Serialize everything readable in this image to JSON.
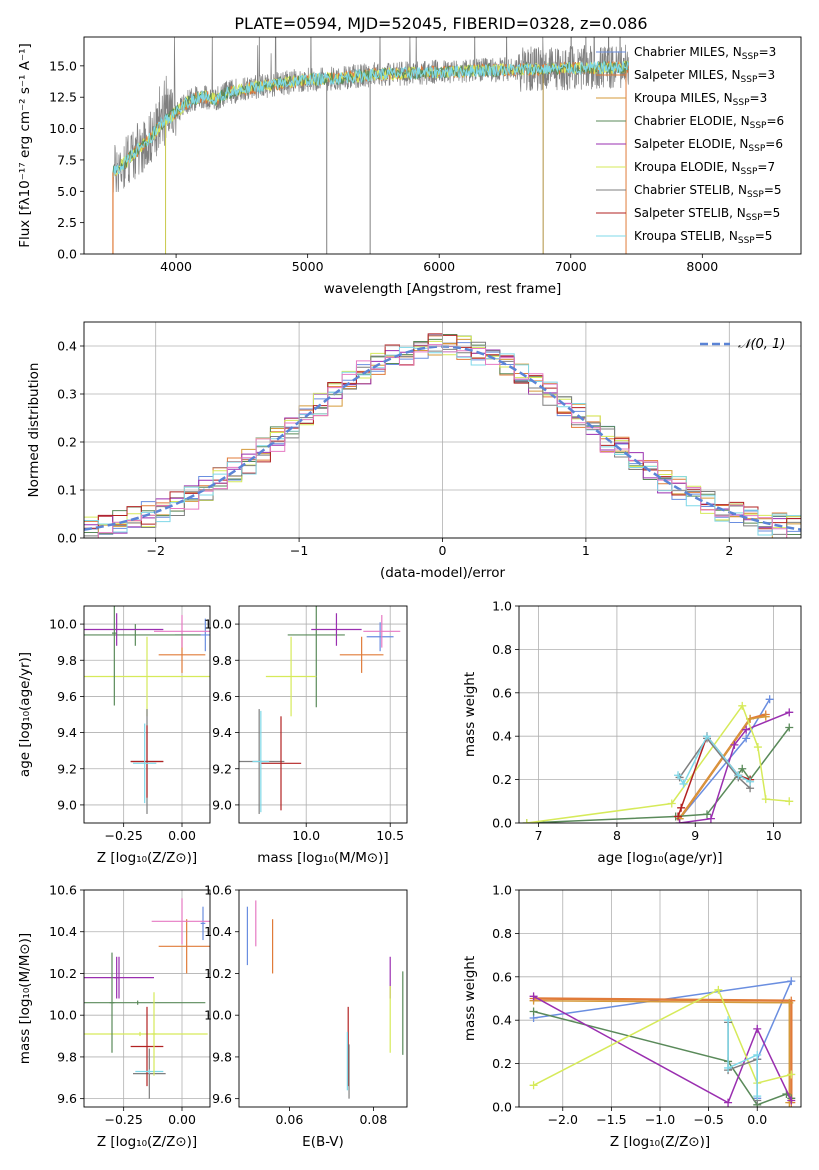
{
  "figure": {
    "title": "PLATE=0594, MJD=52045, FIBERID=0328, z=0.086"
  },
  "colors": {
    "chabrier_miles": "#6a8ee0",
    "salpeter_miles": "#e07b39",
    "kroupa_miles": "#d59a3a",
    "chabrier_elodie": "#5a8a5a",
    "salpeter_elodie": "#9a2fb0",
    "kroupa_elodie": "#d6ea5a",
    "chabrier_stelib": "#7f7f7f",
    "salpeter_stelib": "#b22222",
    "kroupa_stelib": "#7fd8e8",
    "pink": "#e67ac3",
    "gaussian": "#5b84d6"
  },
  "chart_data": [
    {
      "id": "spectrum",
      "type": "line",
      "xlabel": "wavelength [Angstrom, rest frame]",
      "ylabel": "Flux [fλ10⁻¹⁷ erg cm⁻² s⁻¹ A⁻¹]",
      "xlim": [
        3300,
        8750
      ],
      "ylim": [
        0,
        17.3
      ],
      "xticks": [
        "4000",
        "5000",
        "6000",
        "7000",
        "8000"
      ],
      "yticks": [
        "0.0",
        "2.5",
        "5.0",
        "7.5",
        "10.0",
        "12.5",
        "15.0"
      ],
      "grid": false,
      "legend_position": "right",
      "legend": [
        "Chabrier MILES, N_SSP=3",
        "Salpeter MILES, N_SSP=3",
        "Kroupa MILES, N_SSP=3",
        "Chabrier ELODIE, N_SSP=6",
        "Salpeter ELODIE, N_SSP=6",
        "Kroupa ELODIE, N_SSP=7",
        "Chabrier STELIB, N_SSP=5",
        "Salpeter STELIB, N_SSP=5",
        "Kroupa STELIB, N_SSP=5"
      ],
      "data_range_x": [
        3520,
        7440
      ],
      "continuum": {
        "x": [
          3520,
          3600,
          3700,
          3800,
          3900,
          4000,
          4100,
          4200,
          4300,
          4400,
          4600,
          4800,
          5000,
          5200,
          5500,
          6000,
          6500,
          7000,
          7440
        ],
        "y": [
          6.5,
          7.2,
          8.2,
          9.2,
          10.5,
          11.3,
          12.2,
          12.6,
          12.3,
          12.9,
          13.3,
          13.6,
          13.9,
          14.0,
          14.3,
          14.5,
          14.7,
          14.8,
          14.9
        ]
      }
    },
    {
      "id": "residuals",
      "type": "line",
      "xlabel": "(data-model)/error",
      "ylabel": "Normed distribution",
      "xlim": [
        -2.5,
        2.5
      ],
      "ylim": [
        0,
        0.45
      ],
      "xticks": [
        "−2",
        "−1",
        "0",
        "1",
        "2"
      ],
      "yticks": [
        "0.0",
        "0.1",
        "0.2",
        "0.3",
        "0.4"
      ],
      "grid": true,
      "legend_position": "top-right",
      "legend": [
        "𝒩(0, 1)"
      ],
      "bins": 50
    },
    {
      "id": "age-vs-z",
      "type": "scatter",
      "xlabel": "Z [log₁₀(Z/Z⊙)]",
      "ylabel": "age  [log₁₀(age/yr)]",
      "xlim": [
        -0.42,
        0.12
      ],
      "ylim": [
        8.9,
        10.1
      ],
      "xticks": [
        "−0.25",
        "0.00"
      ],
      "yticks": [
        "9.0",
        "9.2",
        "9.4",
        "9.6",
        "9.8",
        "10.0"
      ],
      "grid": true,
      "points": [
        {
          "c": "chabrier_miles",
          "x": 0.1,
          "y": 9.94,
          "xerr": 0.13,
          "yerr": 0.09
        },
        {
          "c": "salpeter_miles",
          "x": 0.0,
          "y": 9.83,
          "xerr": 0.1,
          "yerr": 0.1
        },
        {
          "c": "pink",
          "x": 0.0,
          "y": 9.96,
          "xerr": 0.12,
          "yerr": 0.09
        },
        {
          "c": "chabrier_elodie",
          "x": -0.2,
          "y": 9.94,
          "xerr": 0.28,
          "yerr": 0.06
        },
        {
          "c": "salpeter_elodie",
          "x": -0.28,
          "y": 9.97,
          "xerr": 0.2,
          "yerr": 0.09
        },
        {
          "c": "kroupa_elodie",
          "x": -0.15,
          "y": 9.71,
          "xerr": 0.27,
          "yerr": 0.22
        },
        {
          "c": "chabrier_stelib",
          "x": -0.15,
          "y": 9.24,
          "xerr": 0.07,
          "yerr": 0.29
        },
        {
          "c": "salpeter_stelib",
          "x": -0.15,
          "y": 9.24,
          "xerr": 0.07,
          "yerr": 0.2
        },
        {
          "c": "kroupa_stelib",
          "x": -0.16,
          "y": 9.23,
          "xerr": 0.05,
          "yerr": 0.22
        },
        {
          "c": "chabrier_elodie",
          "x": -0.29,
          "y": 9.95,
          "xerr": 0.01,
          "yerr": 0.4
        }
      ]
    },
    {
      "id": "age-vs-mass",
      "type": "scatter",
      "xlabel": "mass [log₁₀(M/M⊙)]",
      "ylabel": "",
      "xlim": [
        9.6,
        10.6
      ],
      "ylim": [
        8.9,
        10.1
      ],
      "xticks": [
        "9.0",
        "9.5",
        "10.0",
        "10.5"
      ],
      "yticks": [
        "9.0",
        "9.2",
        "9.4",
        "9.6",
        "9.8",
        "10.0"
      ],
      "xtick_values": [
        9.0,
        9.5,
        10.0,
        10.5
      ],
      "grid": true,
      "points": [
        {
          "c": "chabrier_miles",
          "x": 10.44,
          "y": 9.93,
          "xerr": 0.08,
          "yerr": 0.08
        },
        {
          "c": "salpeter_miles",
          "x": 10.33,
          "y": 9.83,
          "xerr": 0.13,
          "yerr": 0.1
        },
        {
          "c": "pink",
          "x": 10.45,
          "y": 9.96,
          "xerr": 0.11,
          "yerr": 0.09
        },
        {
          "c": "chabrier_elodie",
          "x": 10.06,
          "y": 9.94,
          "xerr": 0.17,
          "yerr": 0.4
        },
        {
          "c": "salpeter_elodie",
          "x": 10.18,
          "y": 9.97,
          "xerr": 0.15,
          "yerr": 0.09
        },
        {
          "c": "kroupa_elodie",
          "x": 9.91,
          "y": 9.71,
          "xerr": 0.15,
          "yerr": 0.22
        },
        {
          "c": "chabrier_stelib",
          "x": 9.72,
          "y": 9.24,
          "xerr": 0.15,
          "yerr": 0.29
        },
        {
          "c": "salpeter_stelib",
          "x": 9.85,
          "y": 9.23,
          "xerr": 0.12,
          "yerr": 0.26
        },
        {
          "c": "kroupa_stelib",
          "x": 9.73,
          "y": 9.24,
          "xerr": 0.05,
          "yerr": 0.28
        }
      ]
    },
    {
      "id": "massweight-vs-age",
      "type": "line",
      "xlabel": "age  [log₁₀(age/yr)]",
      "ylabel": "mass weight",
      "xlim": [
        6.75,
        10.35
      ],
      "ylim": [
        0,
        1.0
      ],
      "xticks": [
        "7",
        "8",
        "9",
        "10"
      ],
      "yticks": [
        "0.0",
        "0.2",
        "0.4",
        "0.6",
        "0.8",
        "1.0"
      ],
      "grid": true,
      "series": [
        {
          "c": "chabrier_miles",
          "x": [
            8.8,
            9.65,
            9.95
          ],
          "y": [
            0.02,
            0.39,
            0.57
          ]
        },
        {
          "c": "salpeter_miles",
          "x": [
            8.8,
            9.7,
            9.9
          ],
          "y": [
            0.02,
            0.48,
            0.5
          ]
        },
        {
          "c": "kroupa_miles",
          "x": [
            8.8,
            9.7,
            9.9
          ],
          "y": [
            0.02,
            0.48,
            0.49
          ]
        },
        {
          "c": "chabrier_elodie",
          "x": [
            6.85,
            8.75,
            9.15,
            9.6,
            9.7,
            10.2
          ],
          "y": [
            0.0,
            0.03,
            0.04,
            0.25,
            0.2,
            0.44
          ]
        },
        {
          "c": "salpeter_elodie",
          "x": [
            8.8,
            9.2,
            9.5,
            9.65,
            10.2
          ],
          "y": [
            0.0,
            0.02,
            0.36,
            0.43,
            0.51
          ]
        },
        {
          "c": "kroupa_elodie",
          "x": [
            6.85,
            8.7,
            9.6,
            9.8,
            9.9,
            10.2
          ],
          "y": [
            0.0,
            0.09,
            0.54,
            0.35,
            0.11,
            0.1
          ]
        },
        {
          "c": "chabrier_stelib",
          "x": [
            8.8,
            9.15,
            9.55,
            9.7
          ],
          "y": [
            0.21,
            0.39,
            0.21,
            0.16
          ]
        },
        {
          "c": "salpeter_stelib",
          "x": [
            8.78,
            8.82,
            9.15,
            9.55,
            9.7
          ],
          "y": [
            0.03,
            0.07,
            0.4,
            0.22,
            0.2
          ]
        },
        {
          "c": "kroupa_stelib",
          "x": [
            8.78,
            8.85,
            9.15,
            9.55,
            9.7
          ],
          "y": [
            0.22,
            0.18,
            0.4,
            0.22,
            0.19
          ]
        }
      ]
    },
    {
      "id": "mass-vs-z",
      "type": "scatter",
      "xlabel": "Z [log₁₀(Z/Z⊙)]",
      "ylabel": "mass [log₁₀(M/M⊙)]",
      "xlim": [
        -0.42,
        0.12
      ],
      "ylim": [
        9.56,
        10.6
      ],
      "xticks": [
        "−0.25",
        "0.00"
      ],
      "yticks": [
        "9.6",
        "9.8",
        "10.0",
        "10.2",
        "10.4",
        "10.6"
      ],
      "grid": true,
      "points": [
        {
          "c": "chabrier_miles",
          "x": 0.09,
          "y": 10.44,
          "xerr": 0.01,
          "yerr": 0.08
        },
        {
          "c": "salpeter_miles",
          "x": 0.02,
          "y": 10.33,
          "xerr": 0.12,
          "yerr": 0.13
        },
        {
          "c": "pink",
          "x": 0.0,
          "y": 10.45,
          "xerr": 0.13,
          "yerr": 0.11
        },
        {
          "c": "chabrier_elodie",
          "x": -0.19,
          "y": 10.06,
          "xerr": 0.29,
          "yerr": 0.01
        },
        {
          "c": "salpeter_elodie",
          "x": -0.27,
          "y": 10.18,
          "xerr": 0.15,
          "yerr": 0.1
        },
        {
          "c": "kroupa_elodie",
          "x": -0.18,
          "y": 9.91,
          "xerr": 0.29,
          "yerr": 0.01
        },
        {
          "c": "chabrier_stelib",
          "x": -0.14,
          "y": 9.72,
          "xerr": 0.07,
          "yerr": 0.12
        },
        {
          "c": "salpeter_stelib",
          "x": -0.15,
          "y": 9.85,
          "xerr": 0.07,
          "yerr": 0.19
        },
        {
          "c": "kroupa_stelib",
          "x": -0.14,
          "y": 9.73,
          "xerr": 0.06,
          "yerr": 0.01
        },
        {
          "c": "kroupa_elodie",
          "x": -0.12,
          "y": 9.91,
          "xerr": 0.01,
          "yerr": 0.2
        },
        {
          "c": "salpeter_elodie",
          "x": -0.28,
          "y": 10.18,
          "xerr": 0.01,
          "yerr": 0.1
        },
        {
          "c": "chabrier_elodie",
          "x": -0.3,
          "y": 10.06,
          "xerr": 0.01,
          "yerr": 0.24
        }
      ]
    },
    {
      "id": "mass-vs-ebv",
      "type": "scatter",
      "xlabel": "E(B-V)",
      "ylabel": "",
      "xlim": [
        0.048,
        0.088
      ],
      "ylim": [
        9.56,
        10.6
      ],
      "xticks": [
        "0.06",
        "0.08"
      ],
      "yticks": [
        "9.6",
        "9.8",
        "10.0",
        "10.2",
        "10.4",
        "10.6"
      ],
      "grid": false,
      "points": [
        {
          "c": "chabrier_miles",
          "x": 0.05,
          "y": 10.38,
          "xerr": 0,
          "yerr": 0.14
        },
        {
          "c": "pink",
          "x": 0.052,
          "y": 10.44,
          "xerr": 0,
          "yerr": 0.11
        },
        {
          "c": "salpeter_miles",
          "x": 0.056,
          "y": 10.33,
          "xerr": 0,
          "yerr": 0.13
        },
        {
          "c": "salpeter_stelib",
          "x": 0.074,
          "y": 9.85,
          "xerr": 0,
          "yerr": 0.19
        },
        {
          "c": "kroupa_stelib",
          "x": 0.0738,
          "y": 9.78,
          "xerr": 0,
          "yerr": 0.14
        },
        {
          "c": "chabrier_stelib",
          "x": 0.0742,
          "y": 9.73,
          "xerr": 0,
          "yerr": 0.13
        },
        {
          "c": "salpeter_elodie",
          "x": 0.084,
          "y": 10.18,
          "xerr": 0,
          "yerr": 0.1
        },
        {
          "c": "kroupa_elodie",
          "x": 0.084,
          "y": 9.98,
          "xerr": 0,
          "yerr": 0.16
        },
        {
          "c": "chabrier_elodie",
          "x": 0.087,
          "y": 10.01,
          "xerr": 0,
          "yerr": 0.2
        }
      ]
    },
    {
      "id": "massweight-vs-z",
      "type": "line",
      "xlabel": "Z [log₁₀(Z/Z⊙)]",
      "ylabel": "mass weight",
      "xlim": [
        -2.45,
        0.45
      ],
      "ylim": [
        0,
        1.0
      ],
      "xticks": [
        "−2.0",
        "−1.5",
        "−1.0",
        "−0.5",
        "0.0"
      ],
      "yticks": [
        "0.0",
        "0.2",
        "0.4",
        "0.6",
        "0.8",
        "1.0"
      ],
      "xtick_values": [
        -2.0,
        -1.5,
        -1.0,
        -0.5,
        0.0
      ],
      "grid": true,
      "series": [
        {
          "c": "chabrier_miles",
          "x": [
            -2.3,
            0.35,
            0.0,
            0.0
          ],
          "y": [
            0.41,
            0.58,
            0.22,
            0.04
          ]
        },
        {
          "c": "salpeter_miles",
          "x": [
            -2.3,
            0.35,
            0.35
          ],
          "y": [
            0.5,
            0.49,
            0.02
          ]
        },
        {
          "c": "kroupa_miles",
          "x": [
            -2.3,
            0.33,
            0.33
          ],
          "y": [
            0.49,
            0.48,
            0.02
          ]
        },
        {
          "c": "chabrier_elodie",
          "x": [
            -2.3,
            -0.3,
            0.0,
            0.3,
            0.35
          ],
          "y": [
            0.44,
            0.21,
            0.01,
            0.06,
            0.04
          ]
        },
        {
          "c": "salpeter_elodie",
          "x": [
            -2.3,
            -0.3,
            0.0,
            0.35
          ],
          "y": [
            0.51,
            0.02,
            0.36,
            0.03
          ]
        },
        {
          "c": "kroupa_elodie",
          "x": [
            -2.3,
            -0.4,
            0.0,
            0.35
          ],
          "y": [
            0.1,
            0.54,
            0.11,
            0.15
          ]
        },
        {
          "c": "chabrier_stelib",
          "x": [
            -0.3,
            -0.3,
            0.0,
            0.0
          ],
          "y": [
            0.39,
            0.17,
            0.22,
            0.03
          ]
        },
        {
          "c": "kroupa_stelib",
          "x": [
            -0.3,
            -0.3,
            0.0,
            0.0
          ],
          "y": [
            0.4,
            0.18,
            0.24,
            0.05
          ]
        }
      ]
    }
  ]
}
